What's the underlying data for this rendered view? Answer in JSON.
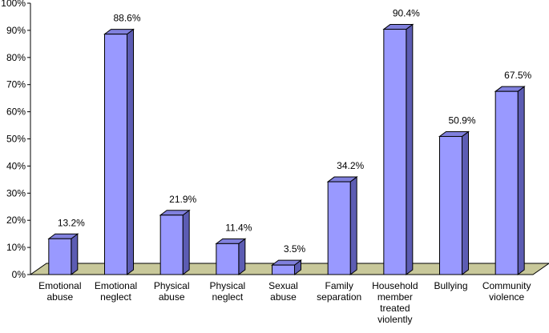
{
  "chart_data": {
    "type": "bar",
    "title": "",
    "xlabel": "",
    "ylabel": "",
    "ylim": [
      0,
      100
    ],
    "yticks": [
      "0%",
      "10%",
      "20%",
      "30%",
      "40%",
      "50%",
      "60%",
      "70%",
      "80%",
      "90%",
      "100%"
    ],
    "categories": [
      [
        "Emotional",
        "abuse"
      ],
      [
        "Emotional",
        "neglect"
      ],
      [
        "Physical",
        "abuse"
      ],
      [
        "Physical",
        "neglect"
      ],
      [
        "Sexual",
        "abuse"
      ],
      [
        "Family",
        "separation"
      ],
      [
        "Household",
        "member",
        "treated",
        "violently"
      ],
      [
        "Bullying"
      ],
      [
        "Community",
        "violence"
      ]
    ],
    "values": [
      13.2,
      88.6,
      21.9,
      11.4,
      3.5,
      34.2,
      90.4,
      50.9,
      67.5
    ],
    "data_labels": [
      "13.2%",
      "88.6%",
      "21.9%",
      "11.4%",
      "3.5%",
      "34.2%",
      "90.4%",
      "50.9%",
      "67.5%"
    ],
    "grid": false,
    "legend": "none",
    "style": "3d-column",
    "colors": {
      "bar_front": "#9999ff",
      "bar_side": "#5c5cb3",
      "bar_top": "#8080dd",
      "floor": "#c8c89a",
      "axis": "#000000"
    }
  }
}
